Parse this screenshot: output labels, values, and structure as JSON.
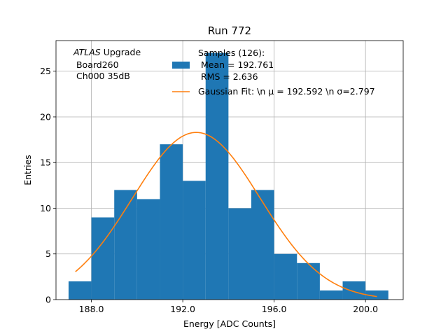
{
  "chart_data": {
    "type": "bar",
    "title": "Run 772",
    "xlabel": "Energy [ADC Counts]",
    "ylabel": "Entries",
    "xlim": [
      186.45,
      201.65
    ],
    "ylim": [
      0,
      28.35
    ],
    "x_ticks": [
      188,
      192,
      196,
      200
    ],
    "x_tick_labels": [
      "188.0",
      "192.0",
      "196.0",
      "200.0"
    ],
    "y_ticks": [
      0,
      5,
      10,
      15,
      20,
      25
    ],
    "y_tick_labels": [
      "0",
      "5",
      "10",
      "15",
      "20",
      "25"
    ],
    "grid": true,
    "bin_width": 1,
    "bins": [
      {
        "left": 187,
        "value": 2
      },
      {
        "left": 188,
        "value": 9
      },
      {
        "left": 189,
        "value": 12
      },
      {
        "left": 190,
        "value": 11
      },
      {
        "left": 191,
        "value": 17
      },
      {
        "left": 192,
        "value": 13
      },
      {
        "left": 193,
        "value": 27
      },
      {
        "left": 194,
        "value": 10
      },
      {
        "left": 195,
        "value": 12
      },
      {
        "left": 196,
        "value": 5
      },
      {
        "left": 197,
        "value": 4
      },
      {
        "left": 198,
        "value": 1
      },
      {
        "left": 199,
        "value": 2
      },
      {
        "left": 200,
        "value": 1
      }
    ],
    "fit": {
      "type": "gaussian",
      "mu": 192.592,
      "sigma": 2.797,
      "amplitude": 18.3,
      "x_range": [
        187.3,
        200.5
      ]
    },
    "legend": {
      "placement": "top-right",
      "hist_label_lines": [
        "Samples (126):",
        " Mean = 192.761",
        " RMS = 2.636"
      ],
      "fit_label": "Gaussian Fit: \\n μ = 192.592 \\n σ=2.797"
    },
    "annotation": {
      "placement": "top-left",
      "atlas": "ATLAS",
      "upgrade": " Upgrade",
      "line2": " Board260",
      "line3": " Ch000 35dB"
    },
    "colors": {
      "bars": "#1f77b4",
      "fit": "#ff7f0e",
      "grid": "#b0b0b0"
    }
  }
}
